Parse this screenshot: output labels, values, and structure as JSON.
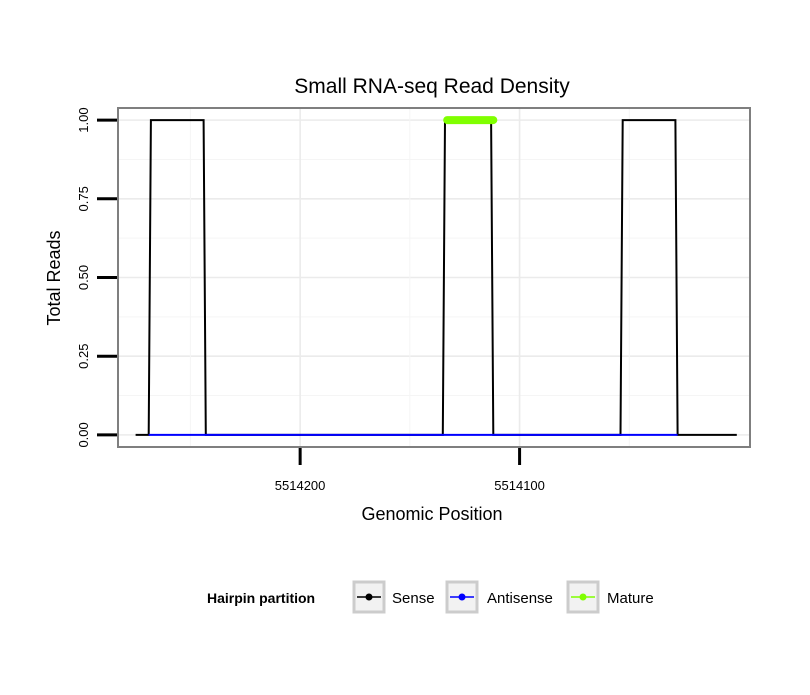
{
  "chart_data": {
    "type": "line",
    "title": "Small RNA-seq Read Density",
    "xlabel": "Genomic Position",
    "ylabel": "Total Reads",
    "x_reversed": true,
    "xlim": [
      5514283,
      5513995
    ],
    "ylim": [
      -0.0385,
      1.0385
    ],
    "x_ticks": [
      5514200,
      5514100
    ],
    "x_tick_labels": [
      "5514200",
      "5514100"
    ],
    "y_ticks": [
      0,
      0.25,
      0.5,
      0.75,
      1
    ],
    "y_tick_labels": [
      "0.00",
      "0.25",
      "0.50",
      "0.75",
      "1.00"
    ],
    "grid": true,
    "series": [
      {
        "name": "Sense",
        "color": "#000000",
        "x": [
          5514275,
          5514269,
          5514268,
          5514244,
          5514243,
          5514135,
          5514134,
          5514113,
          5514112,
          5514054,
          5514053,
          5514029,
          5514028,
          5514001
        ],
        "y": [
          0,
          0,
          1,
          1,
          0,
          0,
          1,
          1,
          0,
          0,
          1,
          1,
          0,
          0
        ]
      },
      {
        "name": "Antisense",
        "color": "#0000ff",
        "x": [
          5514269,
          5514243,
          5514134,
          5514112,
          5514053,
          5514028
        ],
        "y": [
          0,
          0,
          0,
          0,
          0,
          0
        ]
      },
      {
        "name": "Mature",
        "color": "#80ff00",
        "x": [
          5514133,
          5514112
        ],
        "y": [
          1,
          1
        ]
      }
    ],
    "legend": {
      "title": "Hairpin partition",
      "position": "bottom",
      "entries": [
        "Sense",
        "Antisense",
        "Mature"
      ]
    }
  }
}
